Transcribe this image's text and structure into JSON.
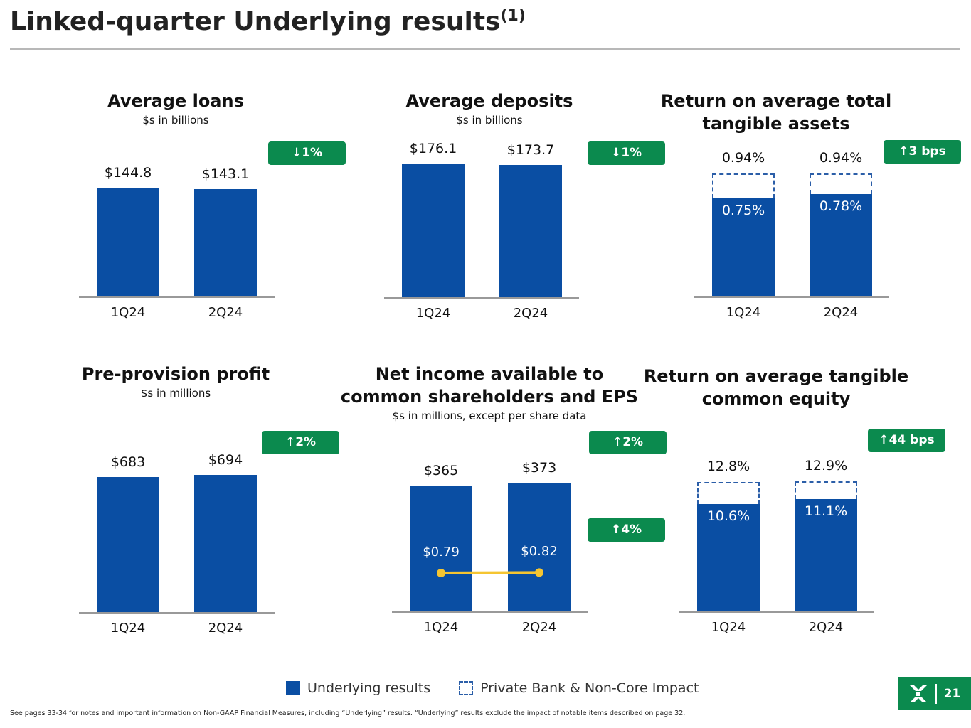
{
  "header": {
    "title": "Linked-quarter Underlying results",
    "title_sup": "(1)"
  },
  "colors": {
    "underlying": "#0a4ea3",
    "badge": "#0b8a4e",
    "eps_line": "#f5c531"
  },
  "chart_data": [
    {
      "type": "bar",
      "title": "Average loans",
      "subtitle": "$s in billions",
      "categories": [
        "1Q24",
        "2Q24"
      ],
      "series": [
        {
          "name": "Underlying results",
          "values": [
            144.8,
            143.1
          ],
          "labels": [
            "$144.8",
            "$143.1"
          ]
        }
      ],
      "badge": {
        "icon": "arrow-down-icon",
        "text": "1%"
      }
    },
    {
      "type": "bar",
      "title": "Average deposits",
      "subtitle": "$s in billions",
      "categories": [
        "1Q24",
        "2Q24"
      ],
      "series": [
        {
          "name": "Underlying results",
          "values": [
            176.1,
            173.7
          ],
          "labels": [
            "$176.1",
            "$173.7"
          ]
        }
      ],
      "badge": {
        "icon": "arrow-down-icon",
        "text": "1%"
      }
    },
    {
      "type": "bar",
      "title": "Return on average total tangible assets",
      "subtitle": "",
      "categories": [
        "1Q24",
        "2Q24"
      ],
      "series": [
        {
          "name": "Underlying results",
          "values": [
            0.75,
            0.78
          ],
          "labels": [
            "0.75%",
            "0.78%"
          ]
        },
        {
          "name": "Private Bank & Non-Core Impact",
          "total": [
            0.94,
            0.94
          ],
          "labels": [
            "0.94%",
            "0.94%"
          ]
        }
      ],
      "badge": {
        "icon": "arrow-up-icon",
        "text": "3 bps"
      }
    },
    {
      "type": "bar",
      "title": "Pre-provision profit",
      "subtitle": "$s in millions",
      "categories": [
        "1Q24",
        "2Q24"
      ],
      "series": [
        {
          "name": "Underlying results",
          "values": [
            683,
            694
          ],
          "labels": [
            "$683",
            "$694"
          ]
        }
      ],
      "badge": {
        "icon": "arrow-up-icon",
        "text": "2%"
      }
    },
    {
      "type": "bar",
      "title": "Net income available to common shareholders and EPS",
      "subtitle": "$s in millions, except per share data",
      "categories": [
        "1Q24",
        "2Q24"
      ],
      "series": [
        {
          "name": "Underlying results",
          "values": [
            365,
            373
          ],
          "labels": [
            "$365",
            "$373"
          ]
        },
        {
          "name": "EPS",
          "type": "line",
          "values": [
            0.79,
            0.82
          ],
          "labels": [
            "$0.79",
            "$0.82"
          ]
        }
      ],
      "badge": {
        "icon": "arrow-up-icon",
        "text": "2%"
      },
      "badge2": {
        "icon": "arrow-up-icon",
        "text": "4%"
      }
    },
    {
      "type": "bar",
      "title": "Return on average tangible common equity",
      "subtitle": "",
      "categories": [
        "1Q24",
        "2Q24"
      ],
      "series": [
        {
          "name": "Underlying results",
          "values": [
            10.6,
            11.1
          ],
          "labels": [
            "10.6%",
            "11.1%"
          ]
        },
        {
          "name": "Private Bank & Non-Core Impact",
          "total": [
            12.8,
            12.9
          ],
          "labels": [
            "12.8%",
            "12.9%"
          ]
        }
      ],
      "badge": {
        "icon": "arrow-up-icon",
        "text": "44 bps"
      }
    }
  ],
  "legend": {
    "underlying": "Underlying results",
    "impact": "Private Bank & Non-Core Impact"
  },
  "footer": {
    "note": "See pages 33-34 for notes and important information on Non-GAAP Financial Measures, including “Underlying” results. “Underlying” results exclude the impact of notable items described on page 32.",
    "page": "21",
    "logo": "Citizens"
  }
}
